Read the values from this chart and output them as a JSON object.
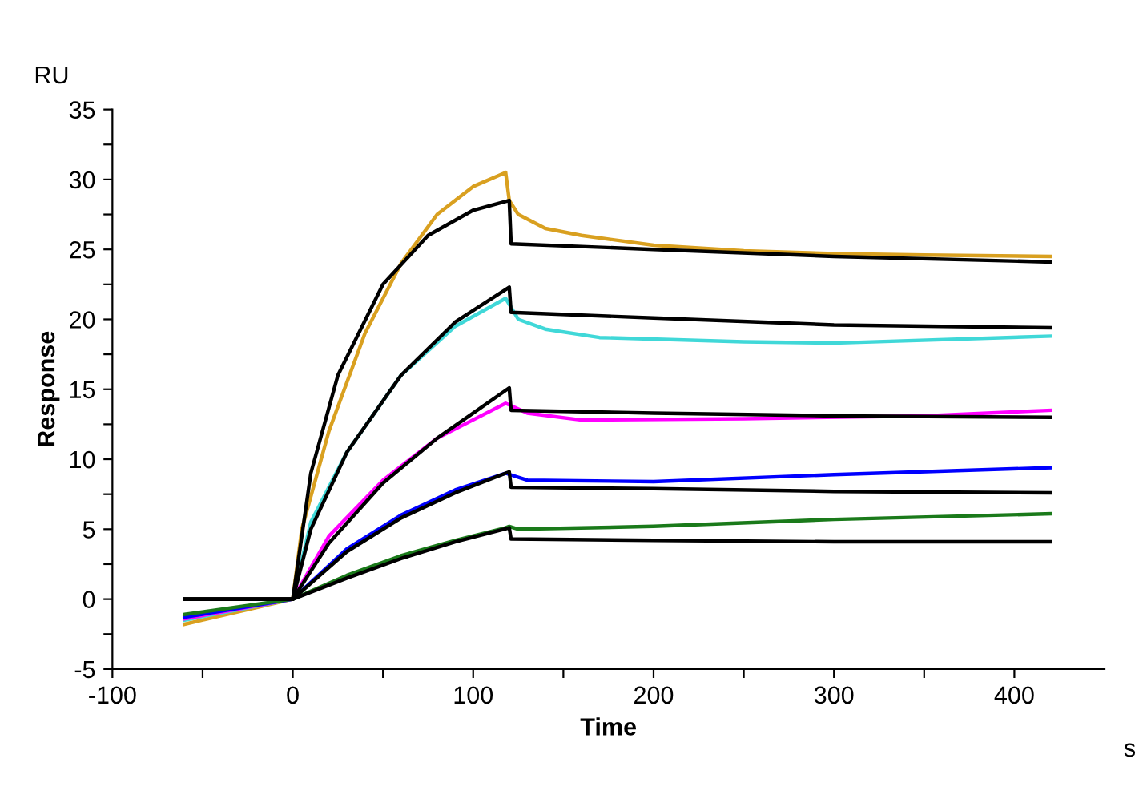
{
  "chart_data": {
    "type": "line",
    "xlabel": "Time",
    "ylabel": "Response",
    "annotations": [
      "RU",
      "s"
    ],
    "xlim": [
      -100,
      450
    ],
    "ylim": [
      -5,
      35
    ],
    "xticks": [
      -100,
      {
        "value": -50,
        "label": null
      },
      0,
      {
        "value": 50,
        "label": null
      },
      100,
      {
        "value": 150,
        "label": null
      },
      200,
      {
        "value": 250,
        "label": null
      },
      300,
      {
        "value": 350,
        "label": null
      },
      400
    ],
    "yticks": [
      -5,
      {
        "value": -2.5,
        "label": null
      },
      0,
      {
        "value": 2.5,
        "label": null
      },
      5,
      {
        "value": 7.5,
        "label": null
      },
      10,
      {
        "value": 12.5,
        "label": null
      },
      15,
      {
        "value": 17.5,
        "label": null
      },
      20,
      {
        "value": 22.5,
        "label": null
      },
      25,
      {
        "value": 27.5,
        "label": null
      },
      30,
      {
        "value": 32.5,
        "label": null
      },
      35
    ],
    "grid": false,
    "legend": false,
    "marker": "none",
    "line_style": "solid",
    "series": [
      {
        "color": "#d9a020",
        "x": [
          -60,
          0,
          5,
          20,
          40,
          60,
          80,
          100,
          118,
          120,
          125,
          140,
          160,
          200,
          250,
          300,
          350,
          420
        ],
        "values": [
          -1.8,
          0,
          5,
          12,
          19,
          24,
          27.5,
          29.5,
          30.5,
          28.5,
          27.5,
          26.5,
          26,
          25.3,
          24.9,
          24.7,
          24.6,
          24.5
        ]
      },
      {
        "color": "#40d8d8",
        "x": [
          -60,
          0,
          10,
          30,
          60,
          90,
          118,
          125,
          140,
          170,
          250,
          300,
          420
        ],
        "values": [
          -1.5,
          0,
          5.5,
          10.5,
          16,
          19.5,
          21.5,
          20,
          19.3,
          18.7,
          18.4,
          18.3,
          18.8
        ]
      },
      {
        "color": "#ff00ff",
        "x": [
          -60,
          0,
          20,
          50,
          80,
          118,
          130,
          160,
          250,
          350,
          420
        ],
        "values": [
          -1.4,
          0,
          4.5,
          8.5,
          11.5,
          14,
          13.3,
          12.8,
          12.9,
          13.1,
          13.5
        ]
      },
      {
        "color": "#0000ff",
        "x": [
          -60,
          0,
          30,
          60,
          90,
          118,
          130,
          200,
          300,
          420
        ],
        "values": [
          -1.3,
          0,
          3.6,
          6,
          7.8,
          9,
          8.5,
          8.4,
          8.9,
          9.4
        ]
      },
      {
        "color": "#1a7a1a",
        "x": [
          -60,
          0,
          30,
          60,
          90,
          118,
          120,
          125,
          200,
          300,
          420
        ],
        "values": [
          -1.1,
          0,
          1.7,
          3.1,
          4.2,
          5.1,
          5.2,
          5,
          5.2,
          5.7,
          6.1
        ]
      },
      {
        "color": "#000000",
        "x": [
          -60,
          0,
          10,
          25,
          50,
          75,
          100,
          120,
          121,
          200,
          300,
          420
        ],
        "values": [
          0,
          0,
          9,
          16,
          22.5,
          26,
          27.8,
          28.5,
          25.4,
          25,
          24.5,
          24.1
        ]
      },
      {
        "color": "#000000",
        "x": [
          -60,
          0,
          10,
          30,
          60,
          90,
          120,
          121,
          200,
          300,
          420
        ],
        "values": [
          0,
          0,
          5,
          10.5,
          16,
          19.8,
          22.3,
          20.5,
          20.1,
          19.6,
          19.4
        ]
      },
      {
        "color": "#000000",
        "x": [
          -60,
          0,
          20,
          50,
          80,
          120,
          121,
          200,
          300,
          420
        ],
        "values": [
          0,
          0,
          4,
          8.3,
          11.5,
          15.1,
          13.5,
          13.3,
          13.1,
          13
        ]
      },
      {
        "color": "#000000",
        "x": [
          -60,
          0,
          30,
          60,
          90,
          120,
          121,
          200,
          300,
          420
        ],
        "values": [
          0,
          0,
          3.4,
          5.8,
          7.6,
          9.1,
          8,
          7.9,
          7.7,
          7.6
        ]
      },
      {
        "color": "#000000",
        "x": [
          -60,
          0,
          30,
          60,
          90,
          120,
          121,
          200,
          300,
          420
        ],
        "values": [
          0,
          0,
          1.5,
          2.9,
          4.1,
          5.1,
          4.3,
          4.2,
          4.1,
          4.1
        ]
      }
    ]
  }
}
